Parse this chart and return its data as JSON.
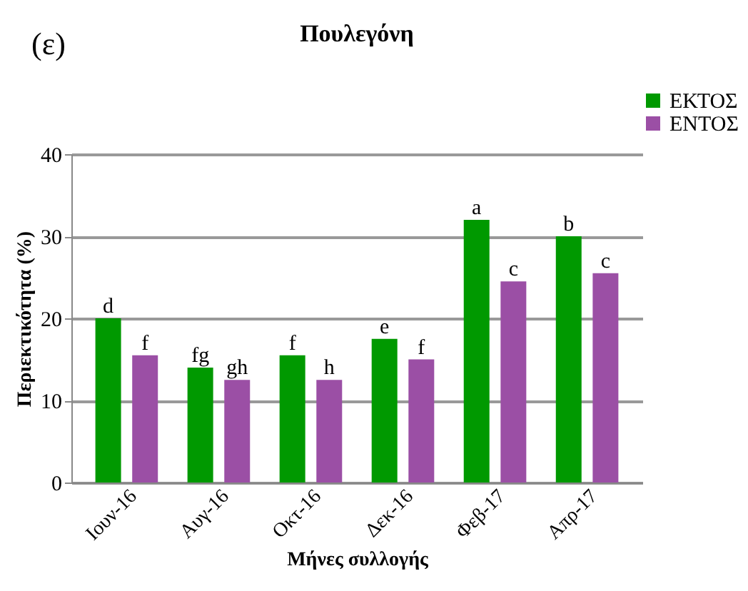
{
  "chart_data": {
    "type": "bar",
    "title": "Πουλεγόνη",
    "annotations": [
      "(ε)"
    ],
    "xlabel": "Μήνες συλλογής",
    "ylabel": "Περιεκτικότητα (%)",
    "categories": [
      "Ιουν-16",
      "Αυγ-16",
      "Οκτ-16",
      "Δεκ-16",
      "Φεβ-17",
      "Απρ-17"
    ],
    "series": [
      {
        "name": "ΕΚΤΟΣ",
        "color": "#009900",
        "values": [
          20,
          14,
          15.5,
          17.5,
          32,
          30
        ],
        "value_labels": [
          "d",
          "fg",
          "f",
          "e",
          "a",
          "b"
        ]
      },
      {
        "name": "ΕΝΤΟΣ",
        "color": "#9b4fa5",
        "values": [
          15.5,
          12.5,
          12.5,
          15,
          24.5,
          25.5
        ],
        "value_labels": [
          "f",
          "gh",
          "h",
          "f",
          "c",
          "c"
        ]
      }
    ],
    "ylim": [
      0,
      40
    ],
    "yticks": [
      0,
      10,
      20,
      30,
      40
    ],
    "grid": "y",
    "legend": "top right"
  }
}
